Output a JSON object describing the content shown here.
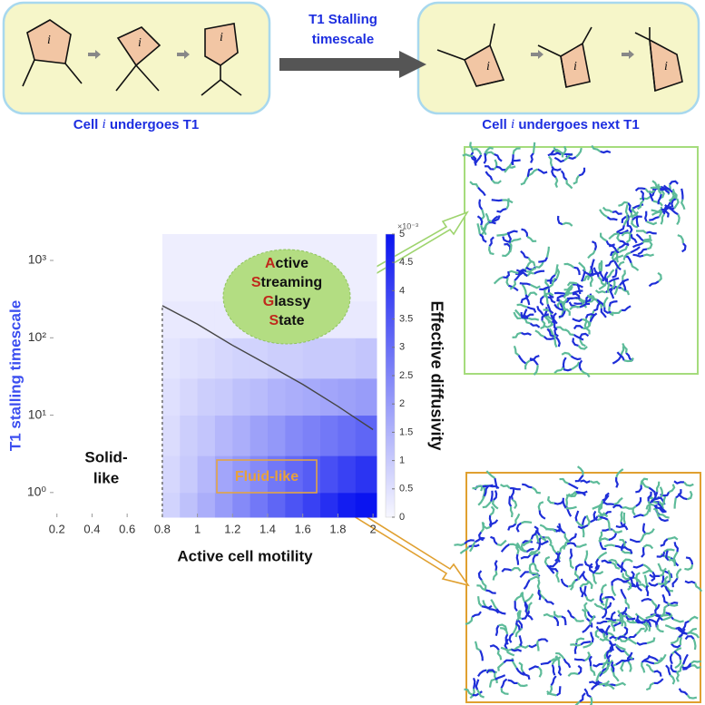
{
  "top_panel": {
    "left_caption": [
      "Cell ",
      "i",
      " undergoes T1"
    ],
    "right_caption": [
      "Cell ",
      "i",
      " undergoes next T1"
    ],
    "arrow_label": [
      "T1 Stalling",
      "timescale"
    ],
    "cell_label": "i"
  },
  "chart_data": {
    "type": "heatmap",
    "xlabel": "Active cell motility",
    "ylabel": "T1 stalling timescale",
    "colorbar_label": "Effective diffusivity",
    "colorbar_exponent": "×10⁻³",
    "xlim": [
      0.16,
      2.02
    ],
    "ylim": [
      0.48,
      2190
    ],
    "log_y": true,
    "xticks": [
      0.2,
      0.4,
      0.6,
      0.8,
      1,
      1.2,
      1.4,
      1.6,
      1.8,
      2
    ],
    "yticks": [
      {
        "value": 1,
        "label": "10⁰"
      },
      {
        "value": 10,
        "label": "10¹"
      },
      {
        "value": 100,
        "label": "10²"
      },
      {
        "value": 1000,
        "label": "10³"
      }
    ],
    "clim": [
      0,
      5
    ],
    "cticks": [
      0,
      0.5,
      1,
      1.5,
      2,
      2.5,
      3,
      3.5,
      4,
      4.5,
      5
    ],
    "color_low": "#f7f7ff",
    "color_high": "#0a14f0",
    "x_edges": [
      0.16,
      0.3,
      0.4,
      0.5,
      0.6,
      0.7,
      0.8,
      0.9,
      1.0,
      1.1,
      1.2,
      1.3,
      1.4,
      1.5,
      1.6,
      1.7,
      1.8,
      1.9,
      2.02
    ],
    "y_edges": [
      0.48,
      1,
      3,
      10,
      30,
      100,
      300,
      1000,
      2190
    ],
    "z": [
      [
        0,
        0,
        0,
        0,
        0,
        0,
        0.8,
        1.2,
        1.6,
        2.0,
        2.4,
        2.8,
        3.2,
        3.6,
        4.0,
        4.4,
        4.8,
        5.0
      ],
      [
        0,
        0,
        0,
        0,
        0,
        0,
        0.7,
        1.0,
        1.4,
        1.8,
        2.1,
        2.4,
        2.8,
        3.1,
        3.4,
        3.7,
        4.0,
        4.3
      ],
      [
        0,
        0,
        0,
        0,
        0,
        0,
        0.6,
        0.9,
        1.1,
        1.4,
        1.6,
        1.9,
        2.1,
        2.4,
        2.6,
        2.8,
        3.0,
        3.2
      ],
      [
        0,
        0,
        0,
        0,
        0,
        0,
        0.5,
        0.7,
        0.9,
        1.0,
        1.2,
        1.3,
        1.5,
        1.6,
        1.7,
        1.8,
        1.9,
        2.0
      ],
      [
        0,
        0,
        0,
        0,
        0,
        0,
        0.4,
        0.5,
        0.6,
        0.7,
        0.8,
        0.8,
        0.9,
        0.9,
        1.0,
        1.0,
        1.0,
        1.1
      ],
      [
        0,
        0,
        0,
        0,
        0,
        0,
        0.3,
        0.3,
        0.3,
        0.3,
        0.3,
        0.3,
        0.3,
        0.3,
        0.3,
        0.3,
        0.3,
        0.3
      ],
      [
        0,
        0,
        0,
        0,
        0,
        0,
        0.2,
        0.2,
        0.2,
        0.2,
        0.2,
        0.2,
        0.2,
        0.2,
        0.2,
        0.2,
        0.2,
        0.2
      ],
      [
        0,
        0,
        0,
        0,
        0,
        0,
        0.2,
        0.2,
        0.2,
        0.2,
        0.2,
        0.2,
        0.2,
        0.2,
        0.2,
        0.2,
        0.2,
        0.2
      ]
    ],
    "boundary": {
      "x": [
        0.8,
        1.0,
        1.2,
        1.4,
        1.6,
        1.8,
        2.0
      ],
      "y": [
        260,
        150,
        80,
        45,
        25,
        13,
        6.5
      ],
      "color": "#444444"
    },
    "dashed_line": {
      "x": [
        0.8,
        0.8
      ],
      "y": [
        0.48,
        260
      ]
    },
    "annotations": {
      "glassy": [
        "Active",
        "Streaming",
        "Glassy",
        "State"
      ],
      "solid": [
        "Solid-",
        "like"
      ],
      "fluid": "Fluid-like"
    }
  }
}
